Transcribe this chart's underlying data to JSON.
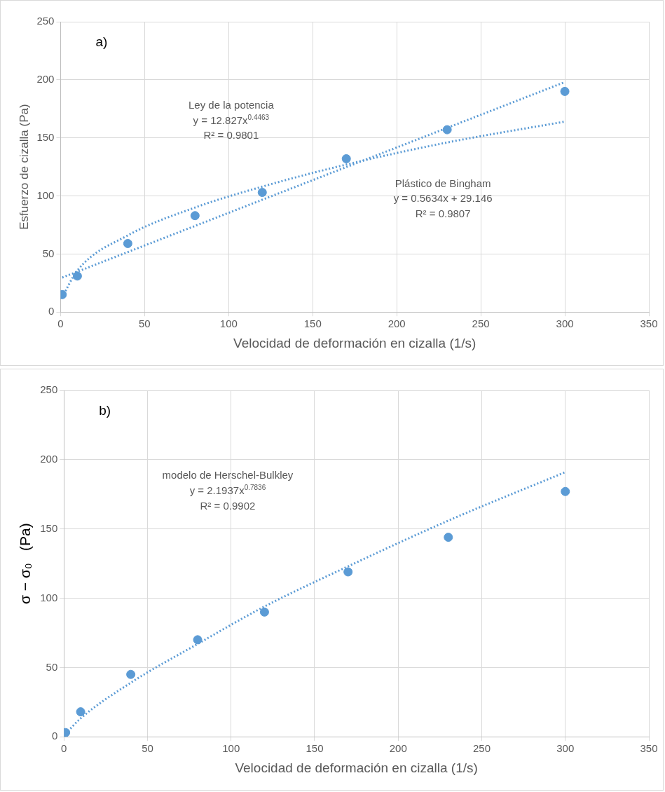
{
  "chart_data": [
    {
      "type": "scatter",
      "title": "a)",
      "xlabel": "Velocidad de deformación en cizalla (1/s)",
      "ylabel": "Esfuerzo de cizalla (Pa)",
      "x": [
        1,
        10,
        40,
        80,
        120,
        170,
        230,
        300
      ],
      "series": [
        {
          "color": "#5b9bd5",
          "marker": "circle",
          "values": [
            15,
            31,
            59,
            83,
            103,
            132,
            157,
            190
          ]
        },
        {
          "type": "line",
          "color": "#5b9bd5",
          "marker": "none",
          "line_style": "dotted",
          "x": [
            1,
            10,
            40,
            80,
            120,
            170,
            230,
            300
          ],
          "values": [
            12.8,
            35.8,
            66,
            90,
            108,
            127,
            146,
            164
          ]
        },
        {
          "type": "line",
          "color": "#5b9bd5",
          "marker": "none",
          "line_style": "dotted",
          "x": [
            1,
            300
          ],
          "values": [
            29.7,
            198
          ]
        }
      ],
      "annotations": [
        "Ley de la potencia\ny = 12.827x$^{0.4463}$\nR² = 0.9801",
        "Plástico de Bingham\ny = 0.5634x  + 29.146\nR² = 0.9807"
      ],
      "xlim": [
        0,
        350
      ],
      "xticks": [
        0,
        50,
        100,
        150,
        200,
        250,
        300,
        350
      ],
      "ylim": [
        0,
        250
      ],
      "yticks": [
        0,
        50,
        100,
        150,
        200,
        250
      ],
      "grid": true,
      "legend": false
    },
    {
      "type": "scatter",
      "title": "b)",
      "xlabel": "Velocidad de deformación en cizalla (1/s)",
      "ylabel": "σ − σ₀   (Pa)",
      "x": [
        1,
        10,
        40,
        80,
        120,
        170,
        230,
        300
      ],
      "series": [
        {
          "color": "#5b9bd5",
          "marker": "circle",
          "values": [
            3,
            18,
            45,
            70,
            90,
            119,
            144,
            177
          ]
        },
        {
          "type": "line",
          "color": "#5b9bd5",
          "marker": "none",
          "line_style": "dotted",
          "x": [
            1,
            10,
            40,
            80,
            120,
            170,
            230,
            300
          ],
          "values": [
            2.2,
            13.3,
            39,
            67,
            94,
            123,
            156,
            191
          ]
        }
      ],
      "annotations": [
        "modelo de Herschel-Bulkley\ny = 2.1937x$^{0.7836}$\nR² = 0.9902"
      ],
      "xlim": [
        0,
        350
      ],
      "xticks": [
        0,
        50,
        100,
        150,
        200,
        250,
        300,
        350
      ],
      "ylim": [
        0,
        250
      ],
      "yticks": [
        0,
        50,
        100,
        150,
        200,
        250
      ],
      "grid": true,
      "legend": false
    }
  ]
}
